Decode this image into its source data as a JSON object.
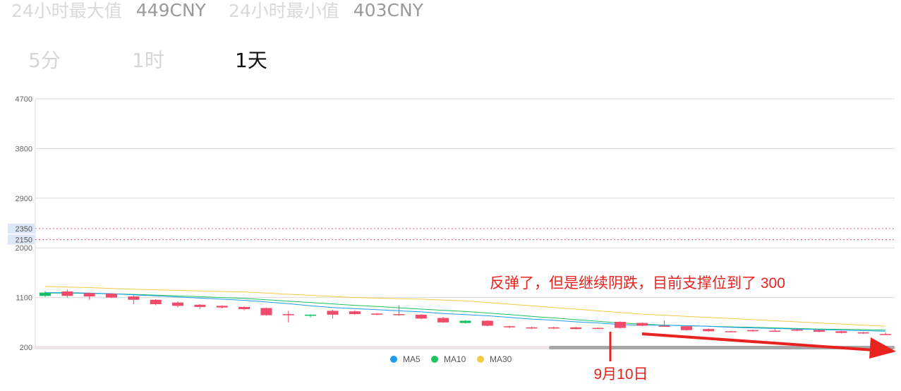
{
  "stats": {
    "high_label": "24小时最大值",
    "high_value": "449CNY",
    "low_label": "24小时最小值",
    "low_value": "403CNY"
  },
  "tabs": [
    {
      "label": "5分",
      "active": false
    },
    {
      "label": "1时",
      "active": false
    },
    {
      "label": "1天",
      "active": true
    }
  ],
  "chart_data": {
    "type": "candlestick",
    "ylim": [
      200,
      4700
    ],
    "y_ticks": [
      4700,
      3800,
      2900,
      2000,
      1100,
      200
    ],
    "grid": true,
    "legend_position": "bottom-center",
    "legend": [
      {
        "name": "MA5",
        "color": "#1e9bf0"
      },
      {
        "name": "MA10",
        "color": "#1ec15f"
      },
      {
        "name": "MA30",
        "color": "#f7c948"
      }
    ],
    "colors": {
      "up": "#ef4b6a",
      "down": "#16bf63"
    },
    "candles": [
      [
        1190,
        1130,
        1220,
        1110
      ],
      [
        1130,
        1210,
        1250,
        1100
      ],
      [
        1120,
        1180,
        1190,
        1060
      ],
      [
        1100,
        1170,
        1180,
        1090
      ],
      [
        1060,
        1120,
        1140,
        980
      ],
      [
        980,
        1060,
        1070,
        960
      ],
      [
        950,
        1010,
        1030,
        920
      ],
      [
        930,
        970,
        980,
        890
      ],
      [
        920,
        950,
        960,
        900
      ],
      [
        890,
        930,
        940,
        870
      ],
      [
        780,
        910,
        920,
        770
      ],
      [
        780,
        800,
        860,
        650
      ],
      [
        790,
        770,
        800,
        740
      ],
      [
        790,
        860,
        880,
        720
      ],
      [
        800,
        850,
        870,
        790
      ],
      [
        790,
        810,
        820,
        780
      ],
      [
        790,
        800,
        960,
        770
      ],
      [
        720,
        790,
        800,
        710
      ],
      [
        650,
        730,
        750,
        640
      ],
      [
        680,
        640,
        690,
        630
      ],
      [
        590,
        680,
        690,
        580
      ],
      [
        560,
        580,
        590,
        550
      ],
      [
        540,
        560,
        570,
        530
      ],
      [
        540,
        560,
        570,
        530
      ],
      [
        530,
        560,
        570,
        520
      ],
      [
        540,
        550,
        560,
        530
      ],
      [
        550,
        660,
        670,
        540
      ],
      [
        590,
        640,
        650,
        580
      ],
      [
        580,
        590,
        680,
        570
      ],
      [
        510,
        580,
        590,
        500
      ],
      [
        490,
        530,
        540,
        480
      ],
      [
        480,
        490,
        500,
        470
      ],
      [
        490,
        510,
        520,
        480
      ],
      [
        490,
        500,
        530,
        480
      ],
      [
        500,
        520,
        530,
        490
      ],
      [
        480,
        510,
        520,
        470
      ],
      [
        460,
        490,
        500,
        450
      ],
      [
        450,
        470,
        480,
        440
      ],
      [
        430,
        440,
        470,
        420
      ]
    ],
    "ma5": [
      1190,
      1190,
      1180,
      1170,
      1150,
      1130,
      1110,
      1090,
      1070,
      1050,
      1020,
      990,
      950,
      920,
      900,
      880,
      860,
      840,
      810,
      790,
      770,
      740,
      710,
      690,
      660,
      640,
      610,
      600,
      600,
      590,
      580,
      560,
      550,
      540,
      530,
      520,
      510,
      500,
      490
    ],
    "ma10": [
      1180,
      1180,
      1175,
      1168,
      1158,
      1145,
      1130,
      1115,
      1100,
      1085,
      1060,
      1035,
      1010,
      985,
      960,
      940,
      915,
      890,
      870,
      850,
      820,
      790,
      760,
      730,
      700,
      670,
      640,
      620,
      600,
      590,
      580,
      570,
      560,
      550,
      540,
      530,
      525,
      520,
      510
    ],
    "ma30": [
      1300,
      1290,
      1280,
      1265,
      1250,
      1240,
      1230,
      1220,
      1210,
      1200,
      1180,
      1160,
      1140,
      1120,
      1100,
      1090,
      1080,
      1070,
      1055,
      1040,
      1010,
      980,
      950,
      920,
      890,
      860,
      830,
      800,
      780,
      760,
      740,
      720,
      700,
      680,
      660,
      640,
      620,
      600,
      580
    ],
    "reference_lines": [
      {
        "value": 2350,
        "label": "2350"
      },
      {
        "value": 2150,
        "label": "2150"
      }
    ],
    "annotations": {
      "comment": "反弹了，但是继续阴跌，目前支撑位到了 300",
      "date_label": "9月10日",
      "annotation_color": "#e8231f"
    }
  }
}
